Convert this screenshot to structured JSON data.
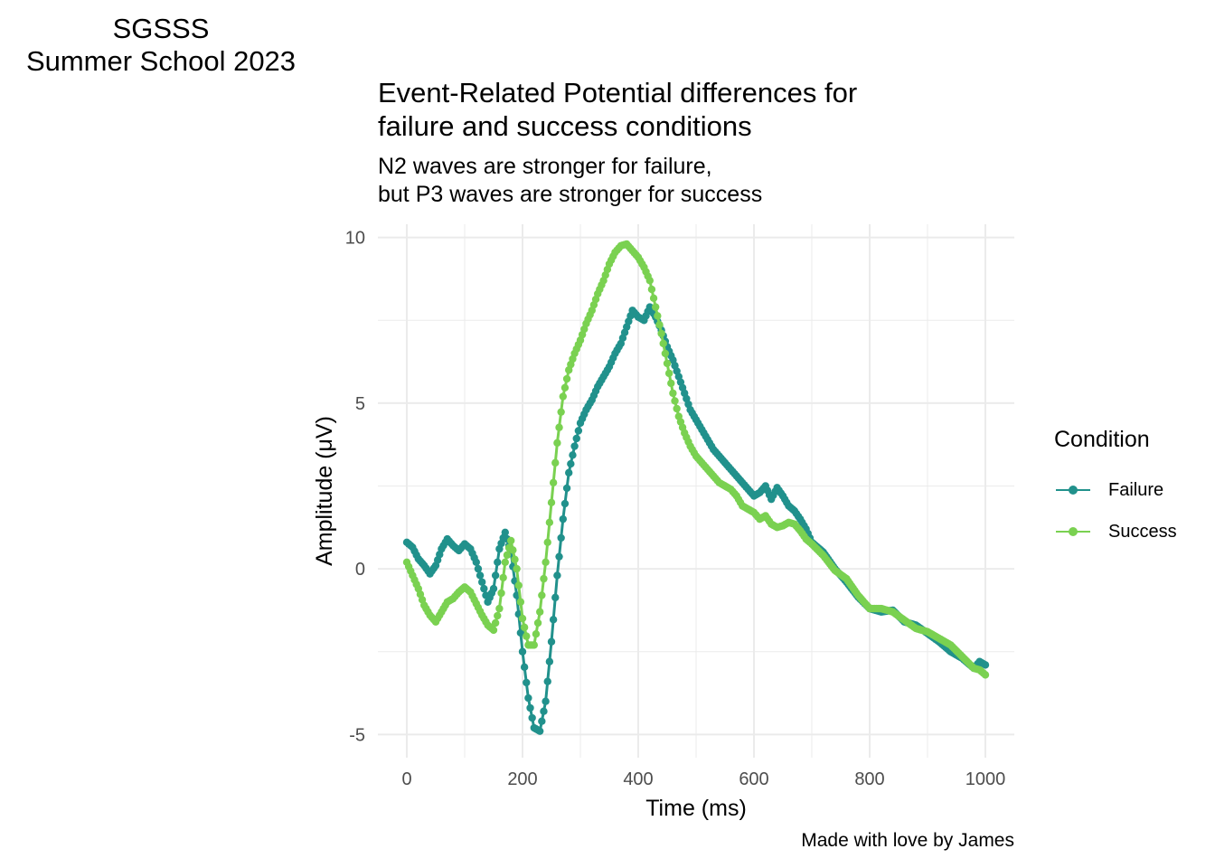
{
  "header": {
    "line1": "SGSSS",
    "line2": "Summer School 2023"
  },
  "caption": "Made with love by James",
  "colors": {
    "failure": "#21918c",
    "success": "#7ad151",
    "grid": "#ebebeb"
  },
  "chart_data": {
    "type": "line",
    "title_lines": [
      "Event-Related Potential differences for",
      "failure and success conditions"
    ],
    "subtitle_lines": [
      "N2 waves are stronger for failure,",
      "but P3 waves are stronger for success"
    ],
    "xlabel": "Time (ms)",
    "ylabel": "Amplitude (μV)",
    "xlim": [
      -50,
      1050
    ],
    "ylim": [
      -5.7,
      10.4
    ],
    "x_ticks": [
      0,
      200,
      400,
      600,
      800,
      1000
    ],
    "x_tick_labels": [
      "0",
      "200",
      "400",
      "600",
      "800",
      "1000"
    ],
    "y_ticks": [
      -5,
      0,
      5,
      10
    ],
    "y_tick_labels": [
      "-5",
      "0",
      "5",
      "10"
    ],
    "grid": true,
    "legend": {
      "title": "Condition",
      "position": "right"
    },
    "series": [
      {
        "name": "Failure",
        "color": "#21918c",
        "x": [
          0,
          10,
          20,
          30,
          40,
          50,
          60,
          70,
          80,
          90,
          100,
          110,
          120,
          130,
          140,
          150,
          160,
          170,
          180,
          190,
          200,
          210,
          220,
          230,
          240,
          250,
          260,
          270,
          280,
          290,
          300,
          310,
          320,
          330,
          340,
          350,
          360,
          370,
          380,
          390,
          400,
          410,
          420,
          430,
          440,
          450,
          460,
          470,
          480,
          490,
          500,
          510,
          520,
          530,
          540,
          550,
          560,
          570,
          580,
          590,
          600,
          610,
          620,
          630,
          640,
          650,
          660,
          670,
          680,
          690,
          700,
          720,
          740,
          760,
          780,
          800,
          820,
          840,
          860,
          880,
          900,
          920,
          940,
          960,
          980,
          990,
          1000
        ],
        "y": [
          0.8,
          0.65,
          0.3,
          0.1,
          -0.15,
          0.1,
          0.6,
          0.9,
          0.7,
          0.55,
          0.75,
          0.6,
          0.2,
          -0.4,
          -1.0,
          -0.6,
          0.6,
          1.1,
          0.5,
          -0.8,
          -2.5,
          -3.9,
          -4.8,
          -4.9,
          -4.0,
          -2.2,
          -0.2,
          1.5,
          2.9,
          3.7,
          4.4,
          4.8,
          5.1,
          5.5,
          5.8,
          6.1,
          6.5,
          6.8,
          7.3,
          7.8,
          7.6,
          7.5,
          7.9,
          7.6,
          7.2,
          6.7,
          6.3,
          5.8,
          5.3,
          4.8,
          4.5,
          4.2,
          3.9,
          3.6,
          3.4,
          3.2,
          3.0,
          2.8,
          2.6,
          2.4,
          2.2,
          2.3,
          2.5,
          2.1,
          2.45,
          2.2,
          1.9,
          1.75,
          1.5,
          1.2,
          0.8,
          0.5,
          0.0,
          -0.4,
          -0.85,
          -1.2,
          -1.3,
          -1.25,
          -1.6,
          -1.7,
          -1.95,
          -2.2,
          -2.5,
          -2.7,
          -3.0,
          -2.8,
          -2.9
        ]
      },
      {
        "name": "Success",
        "color": "#7ad151",
        "x": [
          0,
          10,
          20,
          30,
          40,
          50,
          60,
          70,
          80,
          90,
          100,
          110,
          120,
          130,
          140,
          150,
          160,
          170,
          180,
          190,
          200,
          210,
          220,
          230,
          240,
          250,
          260,
          270,
          280,
          290,
          300,
          310,
          320,
          330,
          340,
          350,
          360,
          370,
          380,
          390,
          400,
          410,
          420,
          430,
          440,
          450,
          460,
          470,
          480,
          490,
          500,
          510,
          520,
          530,
          540,
          550,
          560,
          570,
          580,
          590,
          600,
          610,
          620,
          630,
          640,
          650,
          660,
          670,
          680,
          690,
          700,
          720,
          740,
          760,
          780,
          800,
          820,
          840,
          860,
          880,
          900,
          920,
          940,
          960,
          980,
          990,
          1000
        ],
        "y": [
          0.2,
          -0.2,
          -0.6,
          -1.1,
          -1.4,
          -1.6,
          -1.3,
          -1.0,
          -0.9,
          -0.7,
          -0.55,
          -0.7,
          -1.05,
          -1.4,
          -1.7,
          -1.85,
          -1.2,
          0.2,
          0.85,
          0.0,
          -1.5,
          -2.3,
          -2.3,
          -1.3,
          0.2,
          2.0,
          3.8,
          5.2,
          6.0,
          6.5,
          6.9,
          7.4,
          7.8,
          8.3,
          8.7,
          9.2,
          9.55,
          9.75,
          9.8,
          9.6,
          9.4,
          9.1,
          8.7,
          7.9,
          7.1,
          6.2,
          5.3,
          4.6,
          4.1,
          3.7,
          3.4,
          3.2,
          3.0,
          2.8,
          2.6,
          2.5,
          2.4,
          2.2,
          1.9,
          1.8,
          1.7,
          1.5,
          1.6,
          1.35,
          1.25,
          1.3,
          1.4,
          1.35,
          1.15,
          0.9,
          0.75,
          0.4,
          -0.05,
          -0.3,
          -0.8,
          -1.2,
          -1.2,
          -1.3,
          -1.55,
          -1.8,
          -1.9,
          -2.1,
          -2.3,
          -2.65,
          -3.0,
          -3.05,
          -3.2
        ]
      }
    ]
  }
}
